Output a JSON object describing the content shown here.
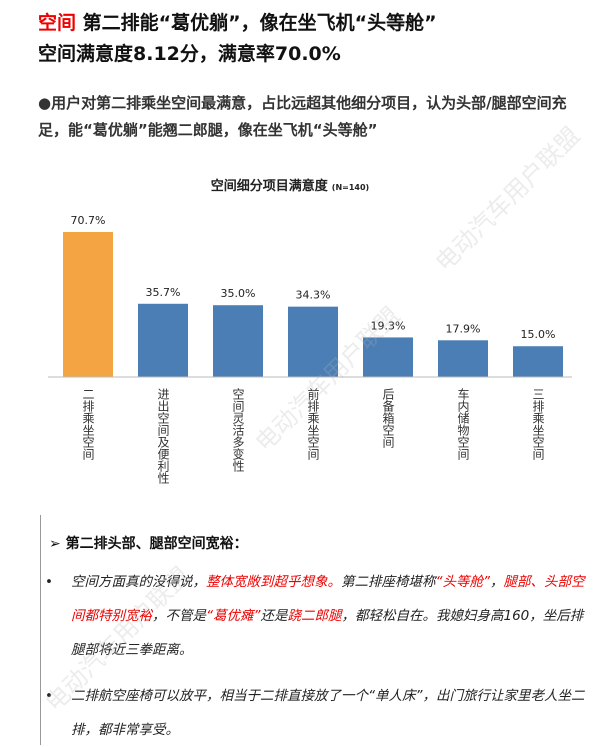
{
  "header": {
    "title_highlight": "空间",
    "title_rest": " 第二排能“葛优躺”，像在坐飞机“头等舱”",
    "subtitle": "空间满意度8.12分，满意率70.0%"
  },
  "summary": "●用户对第二排乘坐空间最满意，占比远超其他细分项目，认为头部/腿部空间充足，能“葛优躺”能翘二郎腿，像在坐飞机“头等舱”",
  "chart_data": {
    "type": "bar",
    "title": "空间细分项目满意度",
    "subtitle": "(N=140)",
    "categories": [
      "二排乘坐空间",
      "进出空间及便利性",
      "空间灵活多变性",
      "前排乘坐空间",
      "后备箱空间",
      "车内储物空间",
      "三排乘坐空间"
    ],
    "values": [
      70.7,
      35.7,
      35.0,
      34.3,
      19.3,
      17.9,
      15.0
    ],
    "value_labels": [
      "70.7%",
      "35.7%",
      "35.0%",
      "34.3%",
      "19.3%",
      "17.9%",
      "15.0%"
    ],
    "colors": [
      "#f4a443",
      "#4a7eb5",
      "#4a7eb5",
      "#4a7eb5",
      "#4a7eb5",
      "#4a7eb5",
      "#4a7eb5"
    ],
    "ylim": [
      0,
      75
    ]
  },
  "section": {
    "heading": "➢ 第二排头部、腿部空间宽裕：",
    "bullets": [
      [
        {
          "text": "空间方面真的没得说，",
          "emphasis": false
        },
        {
          "text": "整体宽敞到超乎想象。",
          "emphasis": true
        },
        {
          "text": "第二排座椅堪称",
          "emphasis": false
        },
        {
          "text": "“头等舱”",
          "emphasis": true
        },
        {
          "text": "，",
          "emphasis": false
        },
        {
          "text": "腿部、头部空间都特别宽裕",
          "emphasis": true
        },
        {
          "text": "，不管是",
          "emphasis": false
        },
        {
          "text": "“葛优瘫”",
          "emphasis": true
        },
        {
          "text": "还是",
          "emphasis": false
        },
        {
          "text": "跷二郎腿",
          "emphasis": true
        },
        {
          "text": "，都轻松自在。我媳妇身高160，坐后排腿部将近三拳距离。",
          "emphasis": false
        }
      ],
      [
        {
          "text": "二排航空座椅可以放平，相当于二排直接放了一个“单人床”，出门旅行让家里老人坐二排，都非常享受。",
          "emphasis": false
        }
      ]
    ]
  },
  "watermark": "电动汽车用户联盟"
}
